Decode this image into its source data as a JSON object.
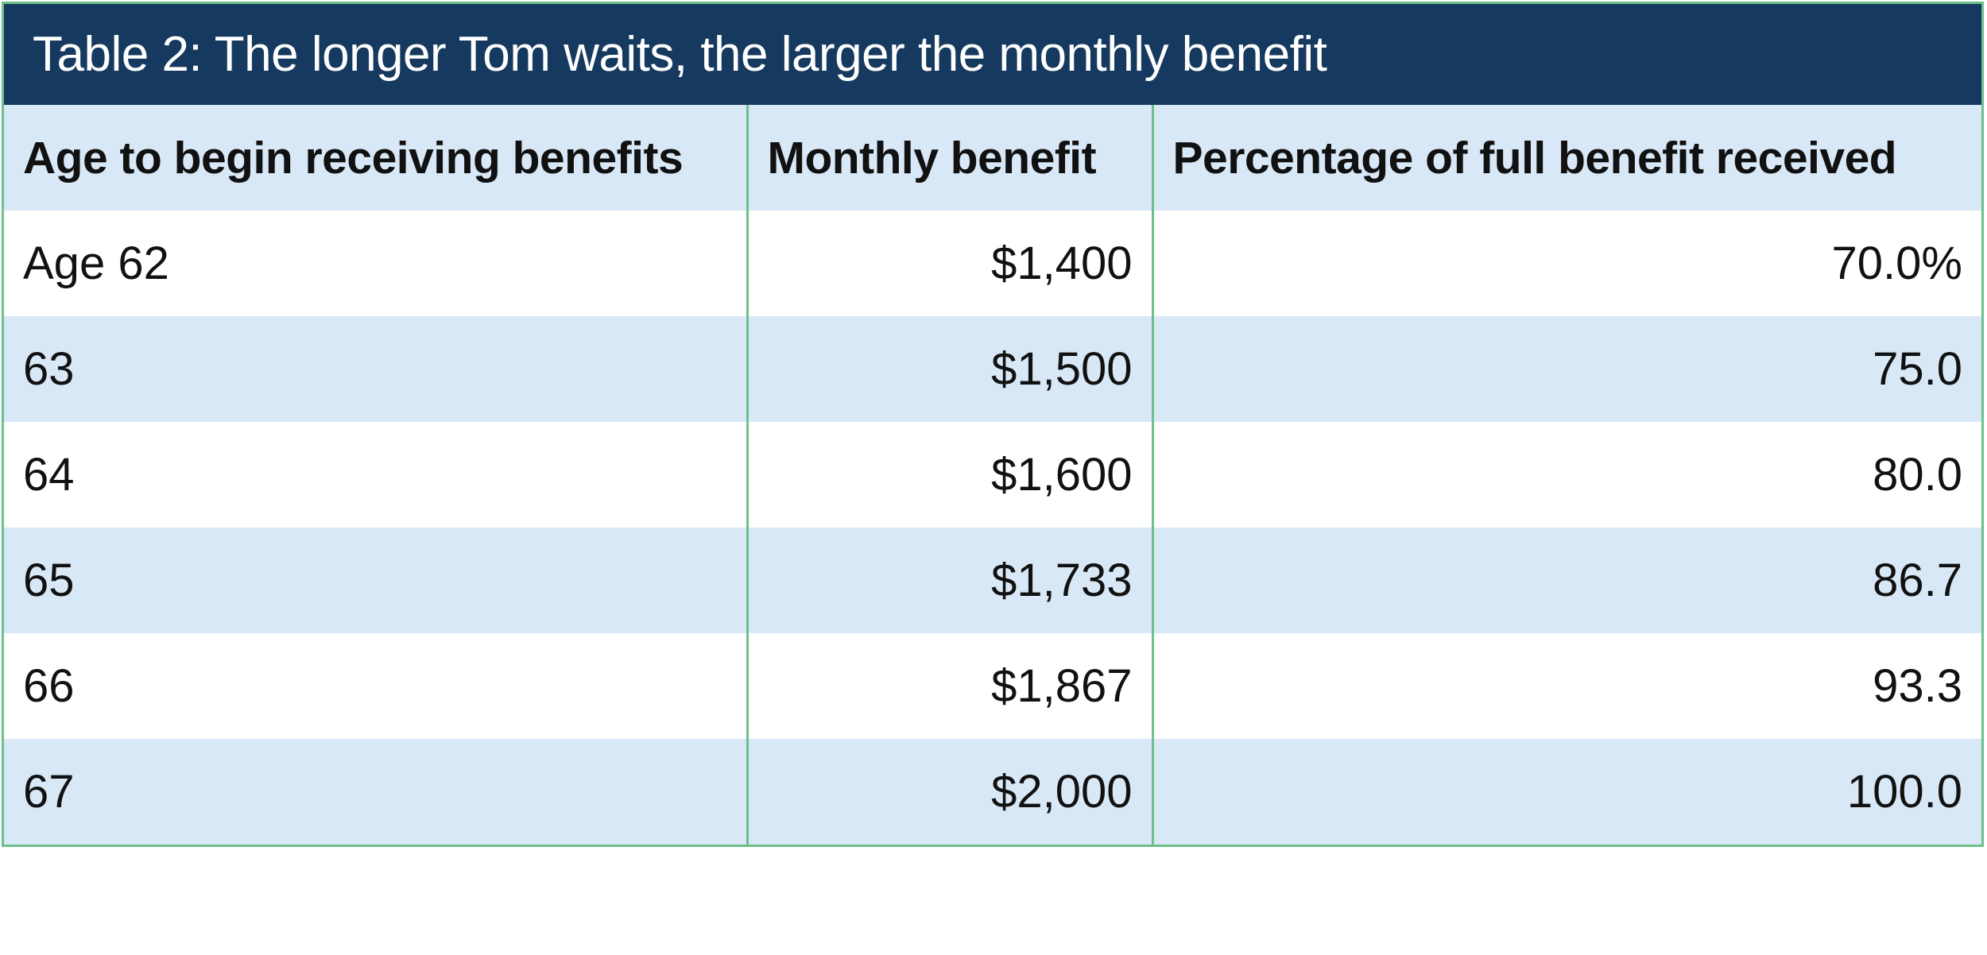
{
  "chart_data": {
    "type": "table",
    "title": "Table 2: The longer Tom waits, the larger the monthly benefit",
    "columns": [
      "Age to begin receiving benefits",
      "Monthly benefit",
      "Percentage of full benefit received"
    ],
    "rows": [
      {
        "age": "Age 62",
        "benefit": "$1,400",
        "percent": "70.0%"
      },
      {
        "age": "63",
        "benefit": "$1,500",
        "percent": "75.0"
      },
      {
        "age": "64",
        "benefit": "$1,600",
        "percent": "80.0"
      },
      {
        "age": "65",
        "benefit": "$1,733",
        "percent": "86.7"
      },
      {
        "age": "66",
        "benefit": "$1,867",
        "percent": "93.3"
      },
      {
        "age": "67",
        "benefit": "$2,000",
        "percent": "100.0"
      }
    ],
    "colors": {
      "title_background": "#163a5f",
      "title_text": "#ffffff",
      "header_background": "#d8e8f6",
      "stripe_background": "#d8e8f6",
      "border": "#6cc08b"
    }
  }
}
